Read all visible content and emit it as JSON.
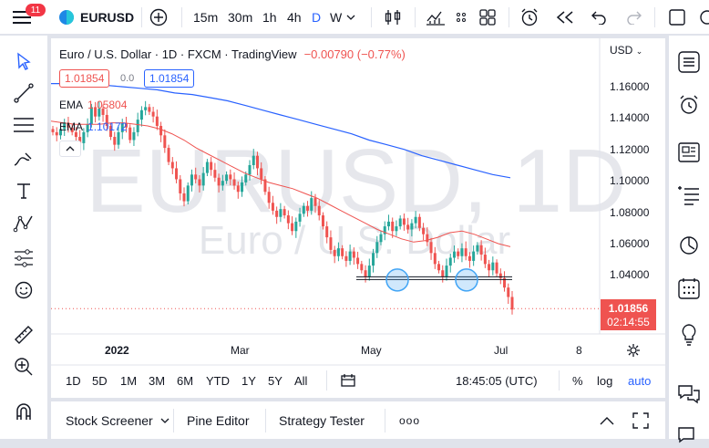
{
  "topbar": {
    "notif_count": "11",
    "symbol": "EURUSD",
    "intervals": [
      "15m",
      "30m",
      "1h",
      "4h",
      "D",
      "W"
    ],
    "active_interval": "D"
  },
  "legend": {
    "title": "Euro / U.S. Dollar · 1D · FXCM · TradingView",
    "change": "−0.00790 (−0.77%)",
    "bid": "1.01854",
    "spread": "0.0",
    "ask": "1.01854",
    "ema1_label": "EMA",
    "ema1_value": "1.05804",
    "ema2_label": "EMA",
    "ema2_value": "1.10172"
  },
  "watermark": {
    "symbol": "EURUSD, 1D",
    "name": "Euro / U.S. Dollar"
  },
  "price_axis": {
    "currency": "USD",
    "ticks": [
      "1.16000",
      "1.14000",
      "1.12000",
      "1.10000",
      "1.08000",
      "1.06000",
      "1.04000"
    ],
    "last_price": "1.01856",
    "countdown": "02:14:55"
  },
  "time_axis": {
    "labels": [
      "2022",
      "Mar",
      "May",
      "Jul",
      "8"
    ]
  },
  "range_bar": {
    "ranges": [
      "1D",
      "5D",
      "1M",
      "3M",
      "6M",
      "YTD",
      "1Y",
      "5Y",
      "All"
    ],
    "time": "18:45:05 (UTC)",
    "percent": "%",
    "log": "log",
    "auto": "auto"
  },
  "bottom_tabs": {
    "stock_screener": "Stock Screener",
    "pine_editor": "Pine Editor",
    "strategy_tester": "Strategy Tester",
    "more": "ooo"
  },
  "colors": {
    "up": "#26a69a",
    "down": "#ef5350",
    "ema_fast": "#ef5350",
    "ema_slow": "#2962ff",
    "accent": "#2962ff",
    "circle": "#42a5f5"
  },
  "chart_data": {
    "type": "candlestick",
    "symbol": "EURUSD",
    "timeframe": "1D",
    "ylim": [
      1.0,
      1.175
    ],
    "x_labels": [
      "2022",
      "Mar",
      "May",
      "Jul",
      "8"
    ],
    "close_path": [
      1.131,
      1.129,
      1.133,
      1.137,
      1.134,
      1.131,
      1.128,
      1.124,
      1.131,
      1.136,
      1.147,
      1.141,
      1.146,
      1.142,
      1.135,
      1.128,
      1.123,
      1.131,
      1.137,
      1.134,
      1.126,
      1.131,
      1.139,
      1.145,
      1.147,
      1.144,
      1.141,
      1.135,
      1.129,
      1.121,
      1.112,
      1.108,
      1.101,
      1.092,
      1.087,
      1.097,
      1.104,
      1.101,
      1.097,
      1.105,
      1.112,
      1.107,
      1.102,
      1.097,
      1.1,
      1.104,
      1.101,
      1.097,
      1.093,
      1.099,
      1.104,
      1.11,
      1.116,
      1.108,
      1.101,
      1.093,
      1.086,
      1.081,
      1.077,
      1.082,
      1.078,
      1.073,
      1.068,
      1.074,
      1.079,
      1.084,
      1.081,
      1.089,
      1.084,
      1.078,
      1.071,
      1.064,
      1.056,
      1.052,
      1.057,
      1.052,
      1.049,
      1.055,
      1.051,
      1.047,
      1.043,
      1.039,
      1.046,
      1.054,
      1.061,
      1.066,
      1.071,
      1.074,
      1.068,
      1.071,
      1.076,
      1.072,
      1.069,
      1.073,
      1.077,
      1.07,
      1.066,
      1.061,
      1.054,
      1.047,
      1.043,
      1.039,
      1.046,
      1.051,
      1.055,
      1.052,
      1.057,
      1.052,
      1.049,
      1.055,
      1.059,
      1.053,
      1.047,
      1.043,
      1.048,
      1.041,
      1.038,
      1.032,
      1.026,
      1.018
    ],
    "ema_fast": [
      1.138,
      1.137,
      1.136,
      1.136,
      1.136,
      1.137,
      1.137,
      1.136,
      1.135,
      1.133,
      1.13,
      1.126,
      1.121,
      1.117,
      1.113,
      1.109,
      1.105,
      1.102,
      1.099,
      1.097,
      1.095,
      1.092,
      1.089,
      1.085,
      1.081,
      1.077,
      1.073,
      1.069,
      1.066,
      1.063,
      1.061,
      1.062,
      1.064,
      1.067,
      1.068,
      1.066,
      1.063,
      1.06,
      1.058
    ],
    "ema_slow": [
      1.162,
      1.162,
      1.162,
      1.161,
      1.16,
      1.159,
      1.158,
      1.156,
      1.155,
      1.153,
      1.151,
      1.148,
      1.145,
      1.142,
      1.139,
      1.136,
      1.133,
      1.13,
      1.126,
      1.123,
      1.12,
      1.116,
      1.113,
      1.11,
      1.107,
      1.104,
      1.102
    ],
    "support_level": 1.038,
    "support_touches": [
      "May",
      "Jun"
    ],
    "last_price": 1.01856
  }
}
